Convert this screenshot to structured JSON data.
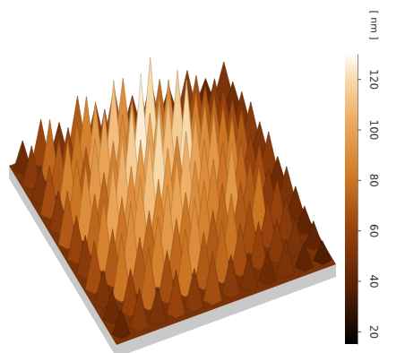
{
  "chart_data": {
    "type": "surface",
    "z": [
      [
        45,
        60,
        50,
        70,
        55,
        65,
        50,
        60,
        45,
        55,
        40,
        50
      ],
      [
        55,
        75,
        60,
        85,
        65,
        90,
        70,
        75,
        60,
        65,
        55,
        45
      ],
      [
        50,
        70,
        80,
        95,
        110,
        85,
        120,
        90,
        75,
        70,
        60,
        50
      ],
      [
        65,
        85,
        70,
        100,
        90,
        125,
        95,
        115,
        85,
        75,
        65,
        55
      ],
      [
        55,
        80,
        95,
        85,
        115,
        100,
        110,
        120,
        90,
        80,
        70,
        50
      ],
      [
        70,
        90,
        75,
        105,
        95,
        120,
        85,
        100,
        95,
        85,
        60,
        55
      ],
      [
        60,
        75,
        100,
        90,
        110,
        95,
        105,
        90,
        80,
        75,
        65,
        45
      ],
      [
        55,
        85,
        80,
        95,
        85,
        100,
        90,
        85,
        95,
        70,
        55,
        50
      ],
      [
        65,
        70,
        90,
        75,
        95,
        80,
        85,
        75,
        70,
        80,
        60,
        45
      ],
      [
        50,
        80,
        70,
        85,
        75,
        90,
        70,
        80,
        65,
        60,
        55,
        40
      ],
      [
        45,
        60,
        75,
        65,
        80,
        70,
        75,
        65,
        60,
        55,
        50,
        40
      ],
      [
        40,
        55,
        50,
        60,
        55,
        65,
        55,
        50,
        45,
        50,
        40,
        35
      ]
    ],
    "colorbar": {
      "label": "[ nm ]",
      "range": [
        15,
        130
      ],
      "ticks": [
        20,
        40,
        60,
        80,
        100,
        120
      ]
    },
    "tick_labels": false
  }
}
